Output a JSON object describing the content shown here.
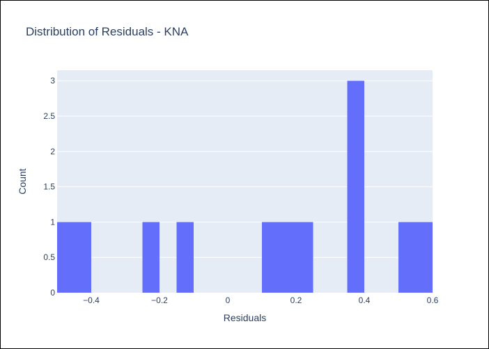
{
  "chart_data": {
    "type": "histogram",
    "title": "Distribution of Residuals - KNA",
    "xlabel": "Residuals",
    "ylabel": "Count",
    "xlim": [
      -0.5,
      0.6
    ],
    "ylim": [
      0,
      3.15
    ],
    "bin_width": 0.05,
    "bins": [
      {
        "start": -0.5,
        "end": -0.45,
        "count": 1
      },
      {
        "start": -0.45,
        "end": -0.4,
        "count": 1
      },
      {
        "start": -0.25,
        "end": -0.2,
        "count": 1
      },
      {
        "start": -0.15,
        "end": -0.1,
        "count": 1
      },
      {
        "start": 0.1,
        "end": 0.15,
        "count": 1
      },
      {
        "start": 0.15,
        "end": 0.2,
        "count": 1
      },
      {
        "start": 0.2,
        "end": 0.25,
        "count": 1
      },
      {
        "start": 0.35,
        "end": 0.4,
        "count": 3
      },
      {
        "start": 0.5,
        "end": 0.55,
        "count": 1
      },
      {
        "start": 0.55,
        "end": 0.6,
        "count": 1
      }
    ],
    "x_ticks": [
      {
        "value": -0.4,
        "label": "−0.4"
      },
      {
        "value": -0.2,
        "label": "−0.2"
      },
      {
        "value": 0,
        "label": "0"
      },
      {
        "value": 0.2,
        "label": "0.2"
      },
      {
        "value": 0.4,
        "label": "0.4"
      },
      {
        "value": 0.6,
        "label": "0.6"
      }
    ],
    "y_ticks": [
      {
        "value": 0,
        "label": "0"
      },
      {
        "value": 0.5,
        "label": "0.5"
      },
      {
        "value": 1,
        "label": "1"
      },
      {
        "value": 1.5,
        "label": "1.5"
      },
      {
        "value": 2,
        "label": "2"
      },
      {
        "value": 2.5,
        "label": "2.5"
      },
      {
        "value": 3,
        "label": "3"
      }
    ],
    "grid": true,
    "colors": {
      "bar": "#636efa",
      "plot_bg": "#e5ecf6",
      "grid": "#ffffff",
      "text": "#2a3f5f"
    }
  }
}
